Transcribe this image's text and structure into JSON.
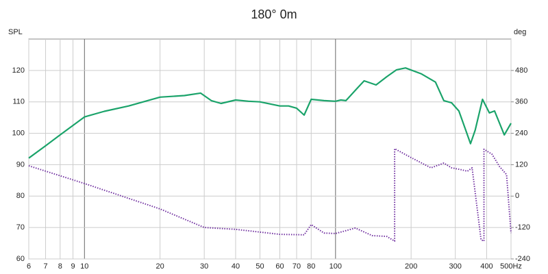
{
  "chart_data": {
    "type": "line",
    "title": "180° 0m",
    "ylabel": "SPL",
    "y2label": "deg",
    "xscale": "log",
    "grid": true,
    "xlim": [
      6,
      500
    ],
    "xticks": [
      6,
      7,
      8,
      9,
      10,
      20,
      30,
      40,
      50,
      60,
      70,
      80,
      100,
      200,
      300,
      400,
      {
        "value": 500,
        "label": "500Hz"
      }
    ],
    "ylim": [
      60,
      130
    ],
    "yticks": [
      60,
      70,
      80,
      90,
      100,
      110,
      120
    ],
    "y2lim": [
      -240,
      600
    ],
    "y2ticks": [
      -240,
      -120,
      0,
      120,
      240,
      360,
      480
    ],
    "series": [
      {
        "color": "#1aa36a",
        "style": "solid",
        "x": [
          6,
          7,
          8,
          9,
          10,
          12,
          15,
          20,
          25,
          29,
          32,
          35,
          40,
          45,
          50,
          60,
          65,
          70,
          75,
          80,
          90,
          100,
          105,
          110,
          120,
          130,
          145,
          160,
          175,
          190,
          220,
          250,
          270,
          290,
          310,
          330,
          345,
          360,
          385,
          410,
          430,
          470,
          500
        ],
        "values": [
          92.1,
          96,
          99.5,
          102.5,
          105.2,
          107,
          108.7,
          111.5,
          112,
          112.8,
          110.4,
          109.5,
          110.6,
          110.2,
          110,
          108.7,
          108.7,
          108,
          105.8,
          110.8,
          110.4,
          110.2,
          110.6,
          110.4,
          113.7,
          116.7,
          115.4,
          118,
          120.2,
          120.8,
          118.9,
          116.3,
          110.4,
          109.7,
          107.1,
          101,
          96.7,
          101,
          110.8,
          106.5,
          107.1,
          99.5,
          103.2
        ]
      },
      {
        "color": "#7030a0",
        "style": "dotted",
        "axis": "y2",
        "x": [
          6,
          10,
          20,
          30,
          40,
          60,
          75,
          80,
          90,
          100,
          120,
          140,
          160,
          172,
          172,
          200,
          240,
          270,
          290,
          320,
          335,
          350,
          380,
          390,
          390,
          420,
          450,
          480,
          500
        ],
        "values": [
          116,
          48,
          -49,
          -120,
          -127,
          -146,
          -148,
          -109,
          -141,
          -143,
          -122,
          -151,
          -154,
          -172,
          181,
          147,
          108,
          126,
          108,
          100,
          95,
          108,
          -167,
          -172,
          179,
          160,
          113,
          82,
          -141
        ]
      }
    ]
  }
}
